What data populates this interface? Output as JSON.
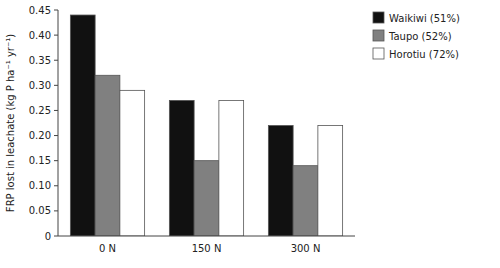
{
  "chart_data": {
    "type": "bar",
    "categories": [
      "0 N",
      "150 N",
      "300 N"
    ],
    "series": [
      {
        "name": "Waikiwi (51%)",
        "color": "#111111",
        "values": [
          0.44,
          0.27,
          0.22
        ]
      },
      {
        "name": "Taupo (52%)",
        "color": "#808080",
        "values": [
          0.32,
          0.15,
          0.14
        ]
      },
      {
        "name": "Horotiu (72%)",
        "color": "#ffffff",
        "values": [
          0.29,
          0.27,
          0.22
        ]
      }
    ],
    "ylabel": "FRP lost in leachate (kg P ha⁻¹ yr⁻¹)",
    "ylim": [
      0,
      0.45
    ],
    "yticks": [
      0,
      0.05,
      {
        "value": 0.1,
        "label": "0.10"
      },
      0.15,
      {
        "value": 0.2,
        "label": "0.20"
      },
      0.25,
      {
        "value": 0.3,
        "label": "0.30"
      },
      0.35,
      {
        "value": 0.4,
        "label": "0.40"
      },
      0.45
    ],
    "grid": false,
    "legend": "upper right"
  }
}
